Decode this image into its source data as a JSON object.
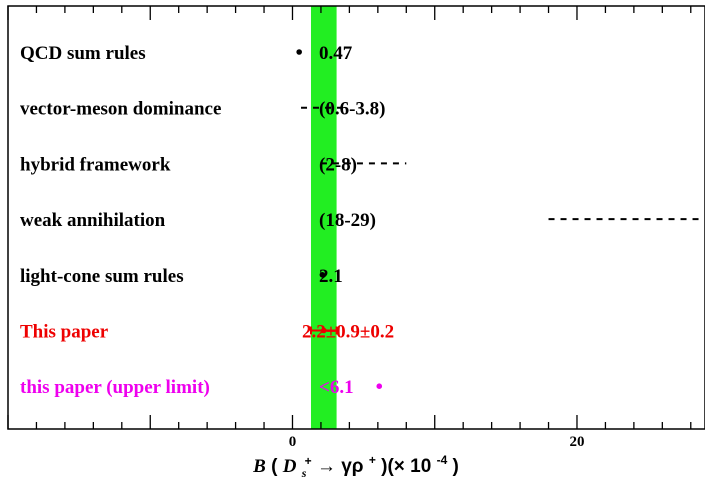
{
  "chart_data": {
    "type": "scatter",
    "title": "",
    "xlim": [
      -20,
      29
    ],
    "xticks_major": [
      -20,
      -10,
      0,
      10,
      20
    ],
    "xticks_labeled": [
      {
        "value": 0,
        "label": "0"
      },
      {
        "value": 20,
        "label": "20"
      }
    ],
    "x_minor_step": 2,
    "grid": false,
    "xlabel_parts": {
      "B": "B",
      "lparen": "(",
      "D": "D",
      "sub": "s",
      "sup": "+",
      "arrow": "→  γρ",
      "sup2": "+",
      "rest": ")(× 10",
      "exp": "-4",
      "close": ")"
    },
    "band": {
      "x_min": 1.3,
      "x_max": 3.1,
      "color": "#22ee22"
    },
    "measurements": [
      {
        "label": "QCD sum rules",
        "value_text": "0.47",
        "kind": "point",
        "x": 0.47,
        "color": "#000000"
      },
      {
        "label": "vector-meson dominance",
        "value_text": "(0.6-3.8)",
        "kind": "range",
        "x_min": 0.6,
        "x_max": 3.8,
        "color": "#000000"
      },
      {
        "label": "hybrid framework",
        "value_text": "(2-8)",
        "kind": "range",
        "x_min": 2,
        "x_max": 8,
        "color": "#000000"
      },
      {
        "label": "weak annihilation",
        "value_text": "(18-29)",
        "kind": "range",
        "x_min": 18,
        "x_max": 29,
        "color": "#000000"
      },
      {
        "label": "light-cone sum rules",
        "value_text": "2.1",
        "kind": "point",
        "x": 2.1,
        "color": "#000000"
      },
      {
        "label": "This paper",
        "value_text": "2.2±0.9±0.2",
        "kind": "errorbar",
        "x": 2.2,
        "err": 0.9,
        "color": "#ee0000"
      },
      {
        "label": "this paper (upper limit)",
        "value_text": "<6.1",
        "kind": "point",
        "x": 6.1,
        "color": "#ee00ee"
      }
    ]
  }
}
